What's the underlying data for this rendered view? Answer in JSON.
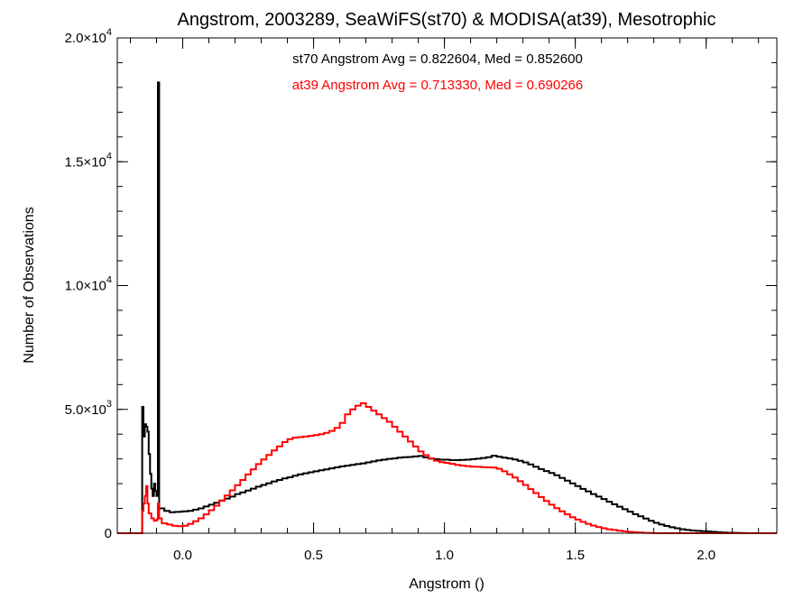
{
  "chart_data": {
    "type": "line",
    "title": "Angstrom, 2003289, SeaWiFS(st70) & MODISA(at39), Mesotrophic",
    "xlabel": "Angstrom ()",
    "ylabel": "Number of Observations",
    "xlim": [
      -0.25,
      2.27
    ],
    "ylim": [
      0,
      20000
    ],
    "x_ticks": [
      {
        "value": 0.0,
        "label": "0.0"
      },
      {
        "value": 0.5,
        "label": "0.5"
      },
      {
        "value": 1.0,
        "label": "1.0"
      },
      {
        "value": 1.5,
        "label": "1.5"
      },
      {
        "value": 2.0,
        "label": "2.0"
      }
    ],
    "y_ticks": [
      {
        "value": 0,
        "mant": "0",
        "exp": ""
      },
      {
        "value": 5000,
        "mant": "5.0×10",
        "exp": "3"
      },
      {
        "value": 10000,
        "mant": "1.0×10",
        "exp": "4"
      },
      {
        "value": 15000,
        "mant": "1.5×10",
        "exp": "4"
      },
      {
        "value": 20000,
        "mant": "2.0×10",
        "exp": "4"
      }
    ],
    "x_minor_step": 0.1,
    "y_minor_step": 1000,
    "grid": false,
    "annotations": [
      {
        "text": "st70 Angstrom Avg = 0.822604, Med = 0.852600",
        "color": "#000000"
      },
      {
        "text": "at39 Angstrom Avg = 0.713330, Med = 0.690266",
        "color": "#ff0000"
      }
    ],
    "series": [
      {
        "color": "#000000",
        "points": [
          [
            -0.16,
            0
          ],
          [
            -0.155,
            5100
          ],
          [
            -0.15,
            3900
          ],
          [
            -0.145,
            4400
          ],
          [
            -0.14,
            4300
          ],
          [
            -0.135,
            4100
          ],
          [
            -0.13,
            3200
          ],
          [
            -0.125,
            2400
          ],
          [
            -0.12,
            1800
          ],
          [
            -0.115,
            1500
          ],
          [
            -0.11,
            2000
          ],
          [
            -0.105,
            1700
          ],
          [
            -0.1,
            1500
          ],
          [
            -0.095,
            18200
          ],
          [
            -0.09,
            1000
          ],
          [
            -0.07,
            900
          ],
          [
            -0.05,
            850
          ],
          [
            -0.03,
            860
          ],
          [
            -0.01,
            870
          ],
          [
            0.0,
            880
          ],
          [
            0.02,
            900
          ],
          [
            0.04,
            950
          ],
          [
            0.06,
            1000
          ],
          [
            0.08,
            1080
          ],
          [
            0.1,
            1150
          ],
          [
            0.12,
            1230
          ],
          [
            0.14,
            1320
          ],
          [
            0.16,
            1400
          ],
          [
            0.18,
            1480
          ],
          [
            0.2,
            1580
          ],
          [
            0.22,
            1650
          ],
          [
            0.24,
            1720
          ],
          [
            0.26,
            1800
          ],
          [
            0.28,
            1880
          ],
          [
            0.3,
            1950
          ],
          [
            0.32,
            2020
          ],
          [
            0.34,
            2090
          ],
          [
            0.36,
            2150
          ],
          [
            0.38,
            2210
          ],
          [
            0.4,
            2260
          ],
          [
            0.42,
            2320
          ],
          [
            0.44,
            2380
          ],
          [
            0.46,
            2420
          ],
          [
            0.48,
            2460
          ],
          [
            0.5,
            2500
          ],
          [
            0.52,
            2540
          ],
          [
            0.54,
            2580
          ],
          [
            0.56,
            2620
          ],
          [
            0.58,
            2660
          ],
          [
            0.6,
            2700
          ],
          [
            0.62,
            2730
          ],
          [
            0.64,
            2760
          ],
          [
            0.66,
            2790
          ],
          [
            0.68,
            2820
          ],
          [
            0.7,
            2860
          ],
          [
            0.72,
            2900
          ],
          [
            0.74,
            2940
          ],
          [
            0.76,
            2970
          ],
          [
            0.78,
            3000
          ],
          [
            0.8,
            3020
          ],
          [
            0.82,
            3050
          ],
          [
            0.84,
            3070
          ],
          [
            0.86,
            3080
          ],
          [
            0.88,
            3100
          ],
          [
            0.9,
            3120
          ],
          [
            0.92,
            3060
          ],
          [
            0.94,
            3010
          ],
          [
            0.96,
            2990
          ],
          [
            0.98,
            2970
          ],
          [
            1.0,
            2970
          ],
          [
            1.02,
            2950
          ],
          [
            1.04,
            2950
          ],
          [
            1.06,
            2960
          ],
          [
            1.08,
            2970
          ],
          [
            1.1,
            2990
          ],
          [
            1.12,
            3010
          ],
          [
            1.14,
            3040
          ],
          [
            1.16,
            3070
          ],
          [
            1.18,
            3130
          ],
          [
            1.2,
            3090
          ],
          [
            1.22,
            3050
          ],
          [
            1.24,
            3020
          ],
          [
            1.26,
            2980
          ],
          [
            1.28,
            2920
          ],
          [
            1.3,
            2860
          ],
          [
            1.32,
            2780
          ],
          [
            1.34,
            2680
          ],
          [
            1.36,
            2590
          ],
          [
            1.38,
            2510
          ],
          [
            1.4,
            2430
          ],
          [
            1.42,
            2340
          ],
          [
            1.44,
            2230
          ],
          [
            1.46,
            2120
          ],
          [
            1.48,
            2010
          ],
          [
            1.5,
            1900
          ],
          [
            1.52,
            1790
          ],
          [
            1.54,
            1690
          ],
          [
            1.56,
            1580
          ],
          [
            1.58,
            1480
          ],
          [
            1.6,
            1380
          ],
          [
            1.62,
            1270
          ],
          [
            1.64,
            1170
          ],
          [
            1.66,
            1070
          ],
          [
            1.68,
            970
          ],
          [
            1.7,
            870
          ],
          [
            1.72,
            770
          ],
          [
            1.74,
            680
          ],
          [
            1.76,
            590
          ],
          [
            1.78,
            500
          ],
          [
            1.8,
            420
          ],
          [
            1.82,
            350
          ],
          [
            1.84,
            290
          ],
          [
            1.86,
            240
          ],
          [
            1.88,
            200
          ],
          [
            1.9,
            160
          ],
          [
            1.92,
            130
          ],
          [
            1.94,
            110
          ],
          [
            1.96,
            95
          ],
          [
            1.98,
            80
          ],
          [
            2.0,
            70
          ],
          [
            2.02,
            55
          ],
          [
            2.04,
            40
          ],
          [
            2.06,
            30
          ],
          [
            2.08,
            20
          ],
          [
            2.1,
            15
          ],
          [
            2.12,
            10
          ],
          [
            2.14,
            5
          ],
          [
            2.16,
            0
          ],
          [
            2.27,
            0
          ]
        ]
      },
      {
        "color": "#ff0000",
        "points": [
          [
            -0.25,
            0
          ],
          [
            -0.16,
            0
          ],
          [
            -0.155,
            900
          ],
          [
            -0.15,
            1200
          ],
          [
            -0.145,
            1500
          ],
          [
            -0.14,
            1900
          ],
          [
            -0.135,
            1200
          ],
          [
            -0.13,
            800
          ],
          [
            -0.12,
            600
          ],
          [
            -0.11,
            500
          ],
          [
            -0.1,
            550
          ],
          [
            -0.095,
            1200
          ],
          [
            -0.09,
            600
          ],
          [
            -0.08,
            400
          ],
          [
            -0.06,
            350
          ],
          [
            -0.04,
            300
          ],
          [
            -0.02,
            280
          ],
          [
            0.0,
            300
          ],
          [
            0.02,
            380
          ],
          [
            0.04,
            480
          ],
          [
            0.06,
            600
          ],
          [
            0.08,
            760
          ],
          [
            0.1,
            930
          ],
          [
            0.12,
            1110
          ],
          [
            0.14,
            1310
          ],
          [
            0.16,
            1520
          ],
          [
            0.18,
            1730
          ],
          [
            0.2,
            1940
          ],
          [
            0.22,
            2150
          ],
          [
            0.24,
            2370
          ],
          [
            0.26,
            2580
          ],
          [
            0.28,
            2790
          ],
          [
            0.3,
            2980
          ],
          [
            0.32,
            3160
          ],
          [
            0.34,
            3340
          ],
          [
            0.36,
            3510
          ],
          [
            0.38,
            3680
          ],
          [
            0.4,
            3800
          ],
          [
            0.42,
            3860
          ],
          [
            0.44,
            3880
          ],
          [
            0.46,
            3900
          ],
          [
            0.48,
            3930
          ],
          [
            0.5,
            3960
          ],
          [
            0.52,
            4000
          ],
          [
            0.54,
            4050
          ],
          [
            0.56,
            4130
          ],
          [
            0.58,
            4250
          ],
          [
            0.6,
            4450
          ],
          [
            0.62,
            4800
          ],
          [
            0.64,
            5000
          ],
          [
            0.66,
            5150
          ],
          [
            0.68,
            5250
          ],
          [
            0.7,
            5100
          ],
          [
            0.72,
            4950
          ],
          [
            0.74,
            4800
          ],
          [
            0.76,
            4650
          ],
          [
            0.78,
            4500
          ],
          [
            0.8,
            4300
          ],
          [
            0.82,
            4100
          ],
          [
            0.84,
            3900
          ],
          [
            0.86,
            3700
          ],
          [
            0.88,
            3500
          ],
          [
            0.9,
            3300
          ],
          [
            0.92,
            3150
          ],
          [
            0.94,
            3020
          ],
          [
            0.96,
            2930
          ],
          [
            0.98,
            2870
          ],
          [
            1.0,
            2840
          ],
          [
            1.02,
            2800
          ],
          [
            1.04,
            2760
          ],
          [
            1.06,
            2730
          ],
          [
            1.08,
            2710
          ],
          [
            1.1,
            2690
          ],
          [
            1.12,
            2680
          ],
          [
            1.14,
            2670
          ],
          [
            1.16,
            2660
          ],
          [
            1.18,
            2650
          ],
          [
            1.2,
            2600
          ],
          [
            1.22,
            2500
          ],
          [
            1.24,
            2380
          ],
          [
            1.26,
            2250
          ],
          [
            1.28,
            2100
          ],
          [
            1.3,
            1950
          ],
          [
            1.32,
            1780
          ],
          [
            1.34,
            1620
          ],
          [
            1.36,
            1460
          ],
          [
            1.38,
            1300
          ],
          [
            1.4,
            1150
          ],
          [
            1.42,
            1010
          ],
          [
            1.44,
            880
          ],
          [
            1.46,
            760
          ],
          [
            1.48,
            650
          ],
          [
            1.5,
            550
          ],
          [
            1.52,
            460
          ],
          [
            1.54,
            380
          ],
          [
            1.56,
            310
          ],
          [
            1.58,
            250
          ],
          [
            1.6,
            200
          ],
          [
            1.62,
            160
          ],
          [
            1.64,
            130
          ],
          [
            1.66,
            100
          ],
          [
            1.68,
            75
          ],
          [
            1.7,
            55
          ],
          [
            1.72,
            40
          ],
          [
            1.74,
            25
          ],
          [
            1.76,
            15
          ],
          [
            1.78,
            8
          ],
          [
            1.8,
            0
          ],
          [
            2.27,
            0
          ]
        ]
      }
    ]
  }
}
